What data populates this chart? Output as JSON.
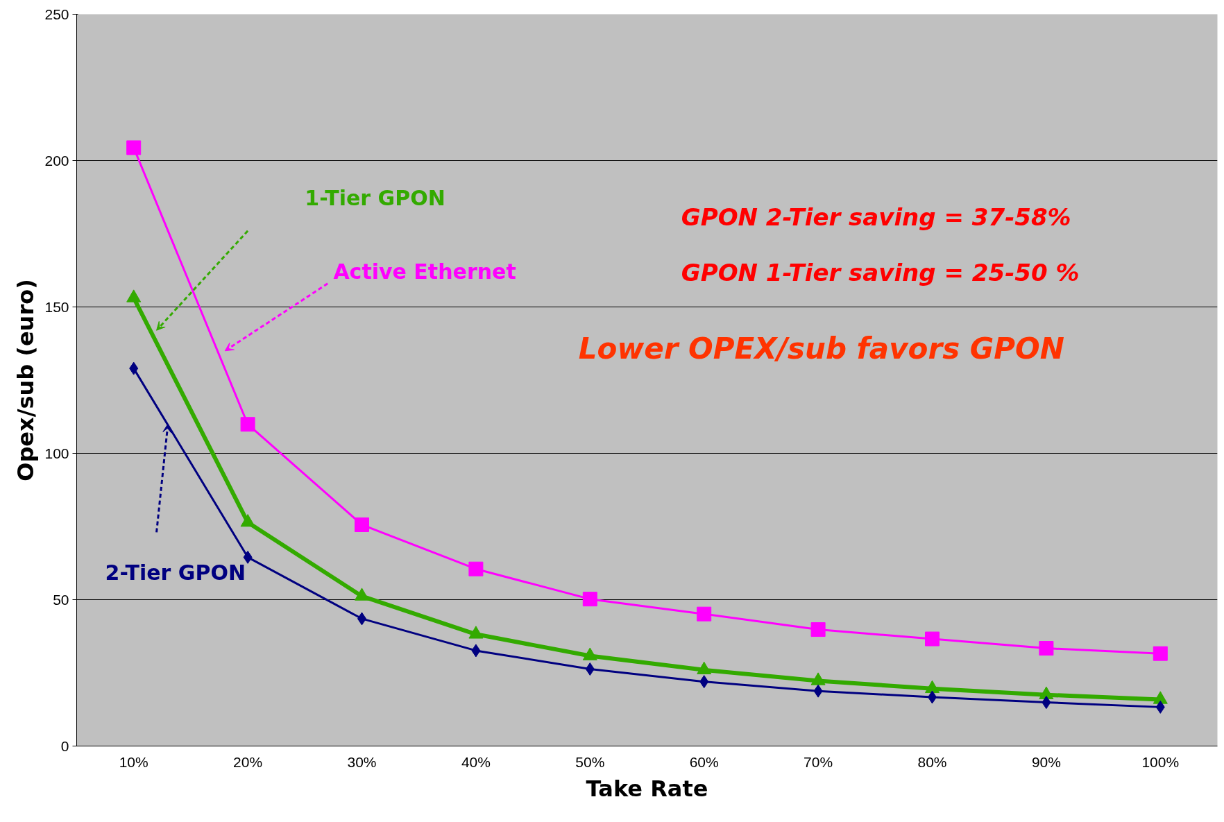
{
  "chart_data": {
    "type": "line",
    "xlabel": "Take Rate",
    "ylabel": "Opex/sub (euro)",
    "categories": [
      "10%",
      "20%",
      "30%",
      "40%",
      "50%",
      "60%",
      "70%",
      "80%",
      "90%",
      "100%"
    ],
    "ylim": [
      0,
      250
    ],
    "yticks": [
      0,
      50,
      100,
      150,
      200,
      250
    ],
    "grid": "y",
    "series": [
      {
        "name": "Active Ethernet",
        "color": "#ff00ff",
        "marker": "square",
        "values": [
          204.4,
          109.9,
          75.6,
          60.5,
          50.2,
          45.1,
          39.8,
          36.6,
          33.4,
          31.6
        ]
      },
      {
        "name": "1-Tier GPON",
        "color": "#33aa00",
        "marker": "triangle",
        "values": [
          153.1,
          76.4,
          51.2,
          38.2,
          30.8,
          26.0,
          22.3,
          19.6,
          17.5,
          15.9
        ]
      },
      {
        "name": "2-Tier GPON",
        "color": "#000080",
        "marker": "diamond",
        "values": [
          129.0,
          64.5,
          43.5,
          32.6,
          26.3,
          22.0,
          18.8,
          16.7,
          14.9,
          13.3
        ]
      }
    ],
    "annotations": [
      "GPON 2-Tier saving = 37-58%",
      "GPON 1-Tier saving = 25-50 %",
      "Lower OPEX/sub favors GPON"
    ]
  }
}
